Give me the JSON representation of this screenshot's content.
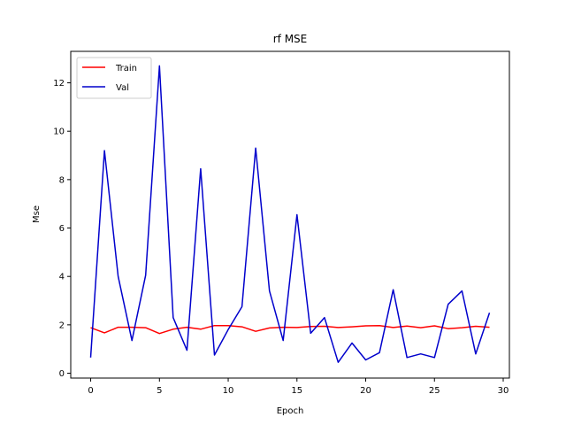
{
  "chart_data": {
    "type": "line",
    "title": "rf MSE",
    "xlabel": "Epoch",
    "ylabel": "Mse",
    "xlim": [
      -1.45,
      30.45
    ],
    "ylim": [
      -0.2,
      13.3
    ],
    "xticks": [
      0,
      5,
      10,
      15,
      20,
      25,
      30
    ],
    "yticks": [
      0,
      2,
      4,
      6,
      8,
      10,
      12
    ],
    "grid": false,
    "legend_position": "upper-left",
    "x": [
      0,
      1,
      2,
      3,
      4,
      5,
      6,
      7,
      8,
      9,
      10,
      11,
      12,
      13,
      14,
      15,
      16,
      17,
      18,
      19,
      20,
      21,
      22,
      23,
      24,
      25,
      26,
      27,
      28,
      29
    ],
    "series": [
      {
        "name": "Train",
        "color": "#ff0000",
        "values": [
          1.88,
          1.67,
          1.9,
          1.9,
          1.88,
          1.64,
          1.82,
          1.9,
          1.82,
          1.97,
          1.97,
          1.92,
          1.73,
          1.87,
          1.9,
          1.89,
          1.93,
          1.94,
          1.89,
          1.92,
          1.96,
          1.97,
          1.89,
          1.95,
          1.88,
          1.96,
          1.84,
          1.88,
          1.94,
          1.9
        ]
      },
      {
        "name": "Val",
        "color": "#0000cc",
        "values": [
          0.65,
          9.2,
          4.0,
          1.35,
          4.05,
          12.7,
          2.3,
          0.95,
          8.45,
          0.75,
          1.8,
          2.75,
          9.3,
          3.4,
          1.35,
          6.55,
          1.65,
          2.3,
          0.45,
          1.25,
          0.55,
          0.85,
          3.45,
          0.65,
          0.8,
          0.65,
          2.85,
          3.4,
          0.8,
          2.5
        ]
      }
    ]
  }
}
